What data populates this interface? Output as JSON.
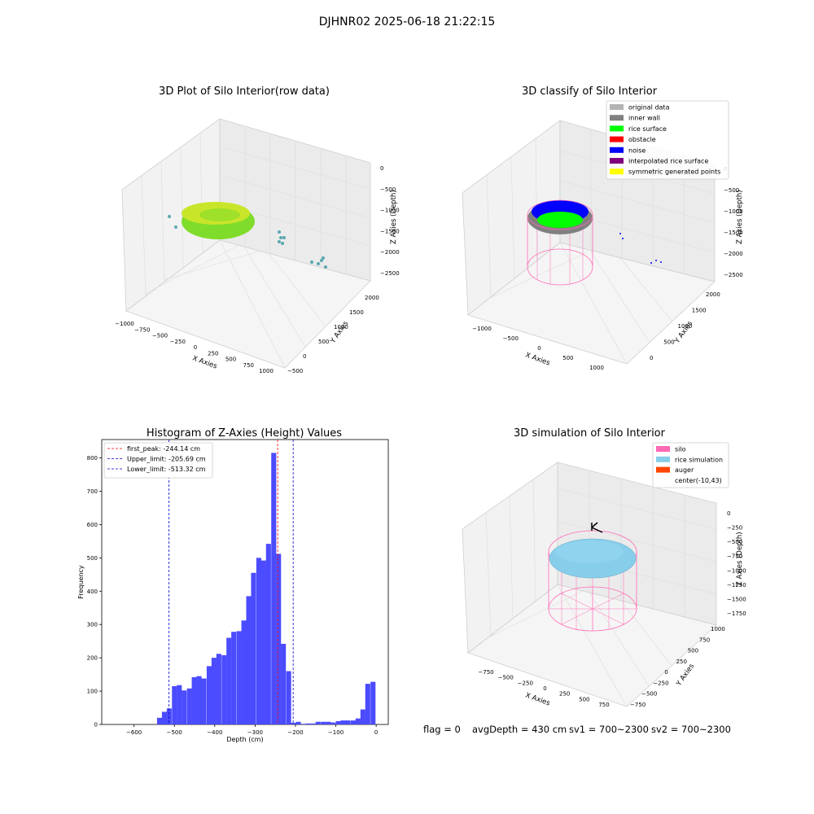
{
  "suptitle": "DJHNR02 2025-06-18 21:22:15",
  "colors": {
    "hist_bar": "#4b4bff",
    "first_peak_line": "#ff0000",
    "limit_line": "#0000cc",
    "silo_wire": "#ff69b4",
    "rice_sim": "#87ceeb",
    "rice_surface": "#00ff00",
    "inner_wall": "#808080",
    "noise": "#0000ff",
    "raw_green": "#7fdc2a",
    "raw_scatter": "#5aa8b0"
  },
  "panels": {
    "raw": {
      "title": "3D Plot of Silo Interior(row data)",
      "xlabel": "X Axies",
      "ylabel": "Y Axies",
      "zlabel": "Z Axies (Depth)",
      "xticks": [
        "−1000",
        "−750",
        "−500",
        "−250",
        "0",
        "250",
        "500",
        "750",
        "1000"
      ],
      "yticks": [
        "−500",
        "0",
        "500",
        "1000",
        "1500",
        "2000"
      ],
      "zticks": [
        "0",
        "−500",
        "−1000",
        "−1500",
        "−2000",
        "−2500"
      ]
    },
    "classify": {
      "title": "3D classify of Silo Interior",
      "xlabel": "X Axies",
      "ylabel": "Y Axies",
      "zlabel": "Z Axies (Depth)",
      "xticks": [
        "−1000",
        "−500",
        "0",
        "500",
        "1000"
      ],
      "yticks": [
        "0",
        "500",
        "1000",
        "1500",
        "2000"
      ],
      "zticks": [
        "0",
        "−500",
        "−1000",
        "−1500",
        "−2000",
        "−2500"
      ],
      "legend": [
        {
          "label": "original data",
          "color": "#b3b3b3"
        },
        {
          "label": "inner wall",
          "color": "#808080"
        },
        {
          "label": "rice surface",
          "color": "#00ff00"
        },
        {
          "label": "obstacle",
          "color": "#ff0000"
        },
        {
          "label": "noise",
          "color": "#0000ff"
        },
        {
          "label": "interpolated rice surface",
          "color": "#800080"
        },
        {
          "label": "symmetric generated points",
          "color": "#ffff00"
        }
      ]
    },
    "simulation": {
      "title": "3D simulation of Silo Interior",
      "xlabel": "X Axies",
      "ylabel": "Y Axies",
      "zlabel": "Z Axies (Depth)",
      "xticks": [
        "−750",
        "−500",
        "−250",
        "0",
        "250",
        "500",
        "750"
      ],
      "yticks": [
        "−750",
        "−500",
        "−250",
        "0",
        "250",
        "500",
        "750",
        "1000"
      ],
      "zticks": [
        "0",
        "−250",
        "−500",
        "−750",
        "−1000",
        "−1250",
        "−1500",
        "−1750"
      ],
      "legend": [
        {
          "label": "silo",
          "color": "#ff69b4"
        },
        {
          "label": "rice simulation",
          "color": "#87ceeb"
        },
        {
          "label": "auger",
          "color": "#ff4500"
        },
        {
          "label": "center(-10,43)",
          "color": ""
        }
      ]
    }
  },
  "status_line": {
    "flag": "flag = 0",
    "avg_depth": "avgDepth = 430 cm",
    "sv1": "sv1 = 700~2300",
    "sv2": "sv2 = 700~2300"
  },
  "chart_data": {
    "type": "bar",
    "title": "Histogram of Z-Axies (Height) Values",
    "xlabel": "Depth (cm)",
    "ylabel": "Frequency",
    "xlim": [
      -680,
      30
    ],
    "ylim": [
      0,
      855
    ],
    "xticks": [
      -600,
      -500,
      -400,
      -300,
      -200,
      -100,
      0
    ],
    "yticks": [
      0,
      100,
      200,
      300,
      400,
      500,
      600,
      700,
      800
    ],
    "bin_width": 12.3,
    "bins": [
      {
        "x0": -543,
        "count": 20
      },
      {
        "x0": -531,
        "count": 38
      },
      {
        "x0": -519,
        "count": 48
      },
      {
        "x0": -506,
        "count": 115
      },
      {
        "x0": -494,
        "count": 118
      },
      {
        "x0": -482,
        "count": 102
      },
      {
        "x0": -469,
        "count": 108
      },
      {
        "x0": -457,
        "count": 142
      },
      {
        "x0": -445,
        "count": 145
      },
      {
        "x0": -433,
        "count": 138
      },
      {
        "x0": -420,
        "count": 175
      },
      {
        "x0": -408,
        "count": 200
      },
      {
        "x0": -396,
        "count": 212
      },
      {
        "x0": -383,
        "count": 208
      },
      {
        "x0": -371,
        "count": 260
      },
      {
        "x0": -359,
        "count": 278
      },
      {
        "x0": -346,
        "count": 280
      },
      {
        "x0": -334,
        "count": 312
      },
      {
        "x0": -322,
        "count": 385
      },
      {
        "x0": -310,
        "count": 455
      },
      {
        "x0": -297,
        "count": 500
      },
      {
        "x0": -285,
        "count": 492
      },
      {
        "x0": -273,
        "count": 542
      },
      {
        "x0": -260,
        "count": 815
      },
      {
        "x0": -248,
        "count": 512
      },
      {
        "x0": -236,
        "count": 242
      },
      {
        "x0": -223,
        "count": 160
      },
      {
        "x0": -211,
        "count": 5
      },
      {
        "x0": -199,
        "count": 8
      },
      {
        "x0": -186,
        "count": 2
      },
      {
        "x0": -174,
        "count": 3
      },
      {
        "x0": -162,
        "count": 3
      },
      {
        "x0": -150,
        "count": 8
      },
      {
        "x0": -137,
        "count": 8
      },
      {
        "x0": -125,
        "count": 8
      },
      {
        "x0": -113,
        "count": 6
      },
      {
        "x0": -100,
        "count": 10
      },
      {
        "x0": -88,
        "count": 12
      },
      {
        "x0": -76,
        "count": 12
      },
      {
        "x0": -63,
        "count": 12
      },
      {
        "x0": -51,
        "count": 18
      },
      {
        "x0": -39,
        "count": 45
      },
      {
        "x0": -27,
        "count": 122
      },
      {
        "x0": -14,
        "count": 128
      }
    ],
    "vlines": [
      {
        "label": "first_peak: -244.14 cm",
        "x": -244.14,
        "color": "#ff0000"
      },
      {
        "label": "Upper_limit: -205.69 cm",
        "x": -205.69,
        "color": "#0000cc"
      },
      {
        "label": "Lower_limit: -513.32 cm",
        "x": -513.32,
        "color": "#0000cc"
      }
    ],
    "legend_position": "upper-left"
  }
}
